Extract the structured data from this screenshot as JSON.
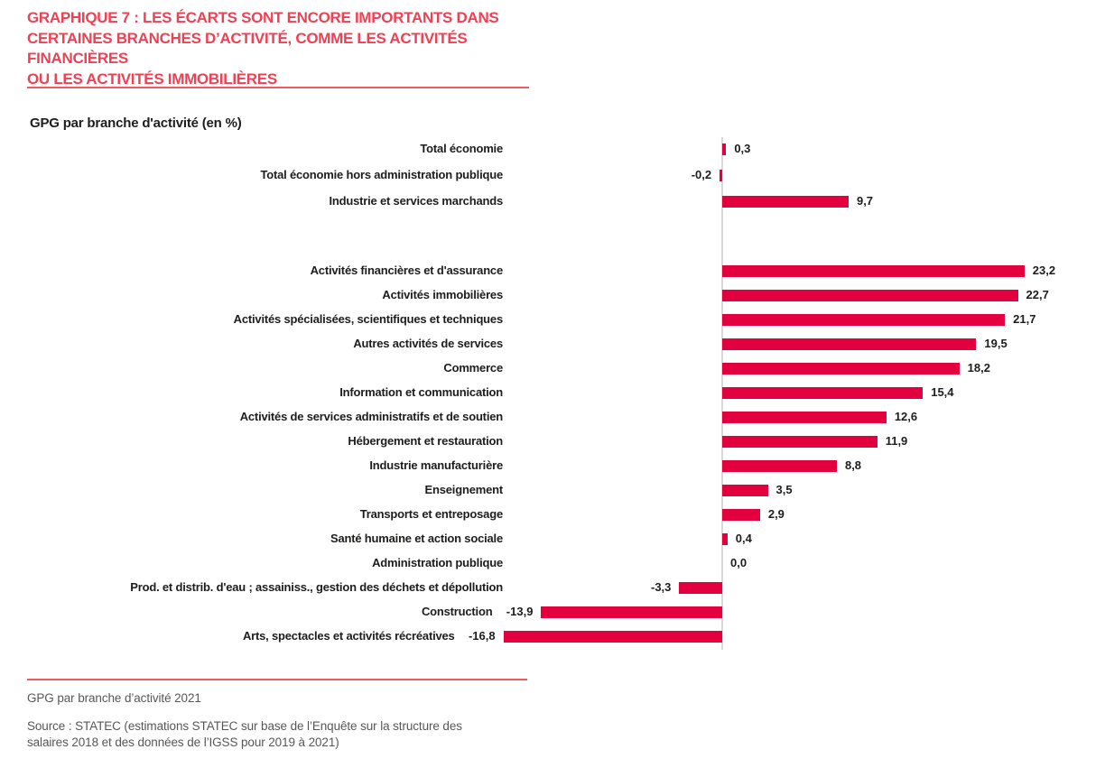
{
  "header": {
    "title_lines": [
      "GRAPHIQUE 7 : LES ÉCARTS SONT ENCORE IMPORTANTS DANS",
      "CERTAINES BRANCHES D’ACTIVITÉ, COMME LES ACTIVITÉS FINANCIÈRES",
      "OU LES ACTIVITÉS IMMOBILIÈRES"
    ]
  },
  "chart_data": {
    "type": "bar",
    "orientation": "horizontal",
    "title": "GPG par branche d'activité (en %)",
    "categories": [
      "Total économie",
      "Total économie hors administration publique",
      "Industrie et services marchands",
      "Activités financières et d'assurance",
      "Activités immobilières",
      "Activités spécialisées, scientifiques et techniques",
      "Autres activités de services",
      "Commerce",
      "Information et communication",
      "Activités de services administratifs et de soutien",
      "Hébergement et restauration",
      "Industrie manufacturière",
      "Enseignement",
      "Transports et entreposage",
      "Santé humaine et action sociale",
      "Administration publique",
      "Prod. et distrib. d'eau ; assainiss., gestion des déchets et dépollution",
      "Construction",
      "Arts, spectacles et activités récréatives"
    ],
    "values": [
      0.3,
      -0.2,
      9.7,
      23.2,
      22.7,
      21.7,
      19.5,
      18.2,
      15.4,
      12.6,
      11.9,
      8.8,
      3.5,
      2.9,
      0.4,
      0.0,
      -3.3,
      -13.9,
      -16.8
    ],
    "value_labels": [
      "0,3",
      "-0,2",
      "9,7",
      "23,2",
      "22,7",
      "21,7",
      "19,5",
      "18,2",
      "15,4",
      "12,6",
      "11,9",
      "8,8",
      "3,5",
      "2,9",
      "0,4",
      "0,0",
      "-3,3",
      "-13,9",
      "-16,8"
    ],
    "group_break_after_index": 2,
    "xlim": [
      -20,
      25
    ],
    "grid": false,
    "legend": "none",
    "bar_color": "#e3003e",
    "axis_color": "#d9d9d9"
  },
  "footer": {
    "caption": "GPG par branche d’activité 2021",
    "source_lines": [
      "Source : STATEC (estimations STATEC sur base de l’Enquête sur la structure des",
      "salaires 2018 et des données de l’IGSS pour 2019 à 2021)"
    ]
  },
  "colors": {
    "accent_bar": "#e3003e",
    "title_red": "#ef4154",
    "divider_red": "#ee5a5e",
    "axis_gray": "#d9d9d9",
    "text_dark": "#1d1d1b",
    "text_gray": "#575756"
  }
}
